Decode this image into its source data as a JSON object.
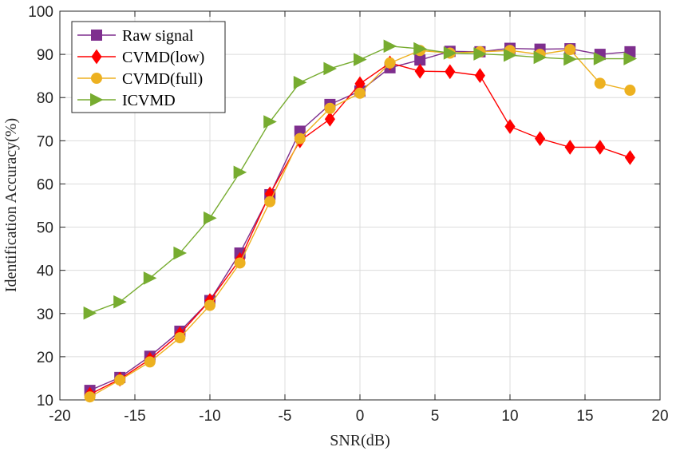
{
  "chart_data": {
    "type": "line",
    "title": "",
    "xlabel": "SNR(dB)",
    "ylabel": "Identification Accuracy(%)",
    "xlim": [
      -20,
      20
    ],
    "ylim": [
      10,
      100
    ],
    "xticks": [
      -20,
      -15,
      -10,
      -5,
      0,
      5,
      10,
      15,
      20
    ],
    "yticks": [
      10,
      20,
      30,
      40,
      50,
      60,
      70,
      80,
      90,
      100
    ],
    "xtick_labels": [
      "-20",
      "-15",
      "-10",
      "-5",
      "0",
      "5",
      "10",
      "15",
      "20"
    ],
    "ytick_labels": [
      "10",
      "20",
      "30",
      "40",
      "50",
      "60",
      "70",
      "80",
      "90",
      "100"
    ],
    "grid": true,
    "legend_position": "top-left",
    "x": [
      -18,
      -16,
      -14,
      -12,
      -10,
      -8,
      -6,
      -4,
      -2,
      0,
      2,
      4,
      6,
      8,
      10,
      12,
      14,
      16,
      18
    ],
    "series": [
      {
        "name": "Raw signal",
        "color": "#7e2f8e",
        "marker": "square",
        "values": [
          12.2,
          15.2,
          20.1,
          25.9,
          33.0,
          44.0,
          57.5,
          72.2,
          78.4,
          81.5,
          86.9,
          88.7,
          90.7,
          90.6,
          91.4,
          91.2,
          91.3,
          90.0,
          90.6
        ]
      },
      {
        "name": "CVMD(low)",
        "color": "#ff0000",
        "marker": "diamond",
        "values": [
          11.3,
          14.8,
          19.4,
          25.3,
          33.0,
          42.5,
          57.7,
          70.0,
          75.0,
          83.2,
          88.0,
          86.1,
          86.0,
          85.1,
          73.3,
          70.5,
          68.5,
          68.5,
          66.1
        ]
      },
      {
        "name": "CVMD(full)",
        "color": "#edb120",
        "marker": "circle",
        "values": [
          10.7,
          14.6,
          18.8,
          24.4,
          31.9,
          41.7,
          55.9,
          70.5,
          77.5,
          81.0,
          88.0,
          90.9,
          90.3,
          90.6,
          90.9,
          90.0,
          91.1,
          83.3,
          81.7
        ]
      },
      {
        "name": "ICVMD",
        "color": "#77ac30",
        "marker": "triangle-right",
        "values": [
          30.1,
          32.7,
          38.2,
          44.0,
          52.1,
          62.7,
          74.4,
          83.5,
          86.7,
          88.8,
          91.9,
          91.3,
          90.3,
          90.1,
          89.8,
          89.3,
          88.9,
          89.0,
          89.0
        ]
      }
    ]
  }
}
